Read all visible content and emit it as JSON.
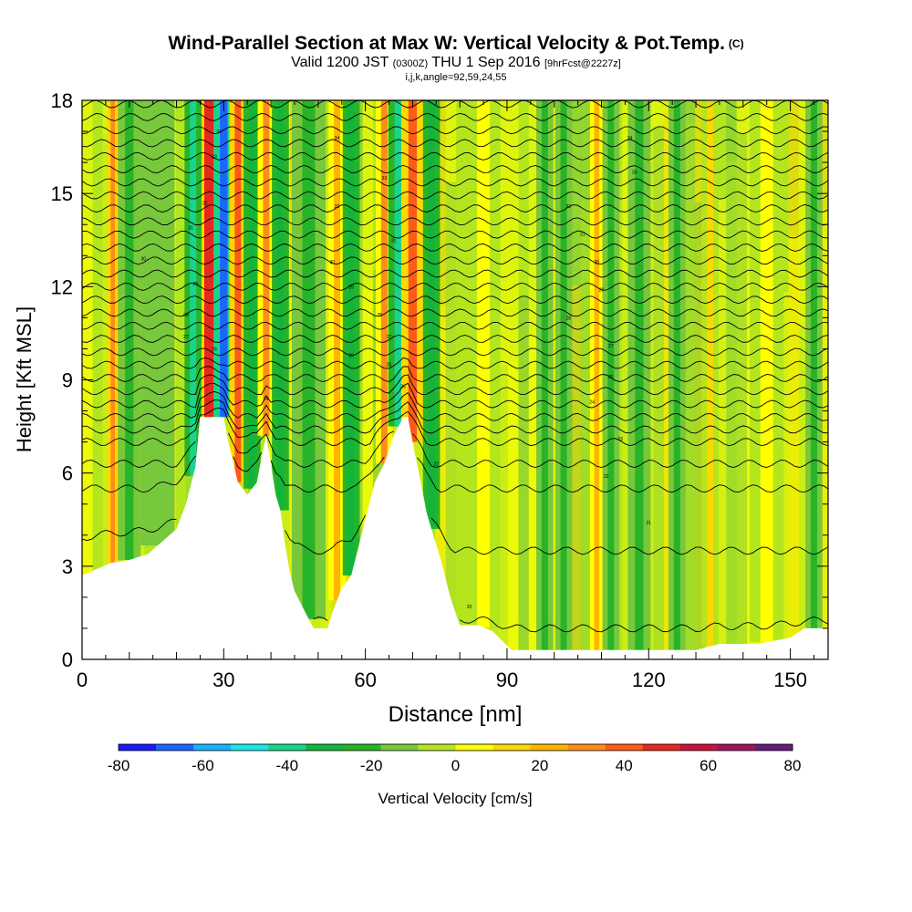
{
  "title": {
    "main": "Wind-Parallel Section at Max W: Vertical Velocity & Pot.Temp.",
    "units": "(C)",
    "valid_prefix": "Valid 1200 JST",
    "valid_z": "(0300Z)",
    "valid_date": "THU 1 Sep 2016",
    "forecast": "[9hrFcst@2227z]",
    "indices": "i,j,k,angle=92,59,24,55"
  },
  "chart_data": {
    "type": "heatmap",
    "xlabel": "Distance [nm]",
    "ylabel": "Height [Kft MSL]",
    "xlim": [
      0,
      158
    ],
    "ylim": [
      0,
      18
    ],
    "xticks": [
      0,
      30,
      60,
      90,
      120,
      150
    ],
    "yticks": [
      0,
      3,
      6,
      9,
      12,
      15,
      18
    ],
    "colorbar": {
      "label": "Vertical Velocity [cm/s]",
      "range": [
        -80,
        80
      ],
      "step": 10,
      "ticks": [
        -80,
        -60,
        -40,
        -20,
        0,
        20,
        40,
        60,
        80
      ],
      "colors": [
        "#1a1aff",
        "#1a66ff",
        "#1ab2ff",
        "#19e6e6",
        "#19d48c",
        "#12b43c",
        "#28b428",
        "#78c83c",
        "#b4e61e",
        "#ffff00",
        "#ffd700",
        "#ffb400",
        "#ff8c1a",
        "#ff5a1a",
        "#e6281e",
        "#c8143c",
        "#a0145a",
        "#641e78"
      ]
    },
    "terrain": [
      [
        0,
        2.7
      ],
      [
        3,
        2.9
      ],
      [
        6,
        3.1
      ],
      [
        10,
        3.2
      ],
      [
        14,
        3.4
      ],
      [
        17,
        3.8
      ],
      [
        20,
        4.2
      ],
      [
        22,
        5.0
      ],
      [
        24,
        6.2
      ],
      [
        25,
        7.8
      ],
      [
        30,
        7.8
      ],
      [
        31,
        7.0
      ],
      [
        33,
        5.7
      ],
      [
        35,
        5.3
      ],
      [
        37,
        5.7
      ],
      [
        38,
        6.5
      ],
      [
        39,
        7.2
      ],
      [
        40,
        6.3
      ],
      [
        41,
        5.3
      ],
      [
        42,
        4.8
      ],
      [
        43,
        3.7
      ],
      [
        44,
        2.8
      ],
      [
        45,
        2.2
      ],
      [
        47,
        1.6
      ],
      [
        49,
        1.0
      ],
      [
        52,
        1.0
      ],
      [
        53,
        1.5
      ],
      [
        55,
        2.3
      ],
      [
        57,
        2.7
      ],
      [
        58,
        3.3
      ],
      [
        60,
        4.5
      ],
      [
        62,
        5.7
      ],
      [
        64,
        6.3
      ],
      [
        66,
        7.2
      ],
      [
        68,
        7.8
      ],
      [
        69,
        7.8
      ],
      [
        70,
        7.0
      ],
      [
        72,
        5.5
      ],
      [
        73,
        4.7
      ],
      [
        74,
        4.2
      ],
      [
        76,
        3.2
      ],
      [
        78,
        2.0
      ],
      [
        80,
        1.1
      ],
      [
        84,
        1.1
      ],
      [
        87,
        0.9
      ],
      [
        89,
        0.6
      ],
      [
        91,
        0.3
      ],
      [
        120,
        0.3
      ],
      [
        130,
        0.3
      ],
      [
        135,
        0.5
      ],
      [
        143,
        0.5
      ],
      [
        150,
        0.7
      ],
      [
        153,
        1.0
      ],
      [
        158,
        1.0
      ]
    ],
    "features": [
      {
        "x": 27,
        "width": 2.5,
        "value": 65
      },
      {
        "x": 30,
        "width": 1.8,
        "value": -70
      },
      {
        "x": 33,
        "width": 1.5,
        "value": 55
      },
      {
        "x": 23.5,
        "width": 1.5,
        "value": -35
      },
      {
        "x": 36,
        "width": 1.5,
        "value": -25
      },
      {
        "x": 39,
        "width": 1.5,
        "value": 40
      },
      {
        "x": 42,
        "width": 1.5,
        "value": -30
      },
      {
        "x": 6.5,
        "width": 1.0,
        "value": 45
      },
      {
        "x": 10,
        "width": 2.0,
        "value": -15
      },
      {
        "x": 16,
        "width": 3.0,
        "value": -10
      },
      {
        "x": 48,
        "width": 3.0,
        "value": -20
      },
      {
        "x": 54,
        "width": 1.5,
        "value": 35
      },
      {
        "x": 57,
        "width": 1.5,
        "value": -25
      },
      {
        "x": 64,
        "width": 1.5,
        "value": 40
      },
      {
        "x": 67,
        "width": 1.8,
        "value": -40
      },
      {
        "x": 70,
        "width": 2.0,
        "value": 55
      },
      {
        "x": 74,
        "width": 1.5,
        "value": -25
      },
      {
        "x": 85,
        "width": 3.0,
        "value": 12
      },
      {
        "x": 98,
        "width": 1.5,
        "value": -20
      },
      {
        "x": 102,
        "width": 1.5,
        "value": -18
      },
      {
        "x": 109,
        "width": 1.2,
        "value": 35
      },
      {
        "x": 112,
        "width": 1.5,
        "value": -15
      },
      {
        "x": 118,
        "width": 2.0,
        "value": -18
      },
      {
        "x": 126,
        "width": 1.5,
        "value": -15
      },
      {
        "x": 133,
        "width": 1.5,
        "value": 22
      },
      {
        "x": 145,
        "width": 3.0,
        "value": 15
      },
      {
        "x": 155,
        "width": 1.5,
        "value": -12
      }
    ],
    "isentropes": {
      "bottom_heights": [
        0.3,
        3.5,
        5.5,
        6.3,
        7.0,
        7.4
      ],
      "upper_start": 7.8,
      "upper_spacing": 0.42,
      "upper_count": 25
    },
    "contour_labels": [
      {
        "x": 29,
        "y": 17.0,
        "text": "34"
      },
      {
        "x": 54,
        "y": 16.8,
        "text": "34"
      },
      {
        "x": 28,
        "y": 16.2,
        "text": "33"
      },
      {
        "x": 64,
        "y": 15.5,
        "text": "33"
      },
      {
        "x": 116,
        "y": 16.8,
        "text": "34"
      },
      {
        "x": 117,
        "y": 15.7,
        "text": "33"
      },
      {
        "x": 26,
        "y": 14.7,
        "text": "32"
      },
      {
        "x": 54,
        "y": 14.6,
        "text": "32"
      },
      {
        "x": 103,
        "y": 14.6,
        "text": "32"
      },
      {
        "x": 23,
        "y": 13.9,
        "text": "31"
      },
      {
        "x": 66,
        "y": 13.5,
        "text": "31"
      },
      {
        "x": 106,
        "y": 13.7,
        "text": "31"
      },
      {
        "x": 13,
        "y": 12.9,
        "text": "30"
      },
      {
        "x": 53,
        "y": 12.8,
        "text": "30"
      },
      {
        "x": 109,
        "y": 12.8,
        "text": "30"
      },
      {
        "x": 24,
        "y": 12.1,
        "text": "29"
      },
      {
        "x": 57,
        "y": 12.0,
        "text": "29"
      },
      {
        "x": 110,
        "y": 11.9,
        "text": "29"
      },
      {
        "x": 22,
        "y": 11.1,
        "text": "28"
      },
      {
        "x": 63,
        "y": 11.1,
        "text": "28"
      },
      {
        "x": 103,
        "y": 11.0,
        "text": "28"
      },
      {
        "x": 22,
        "y": 10.4,
        "text": "27"
      },
      {
        "x": 65,
        "y": 10.4,
        "text": "27"
      },
      {
        "x": 112,
        "y": 10.1,
        "text": "27"
      },
      {
        "x": 28,
        "y": 10.0,
        "text": "26"
      },
      {
        "x": 57,
        "y": 9.8,
        "text": "26"
      },
      {
        "x": 65,
        "y": 9.5,
        "text": "25"
      },
      {
        "x": 112,
        "y": 9.1,
        "text": "25"
      },
      {
        "x": 68,
        "y": 8.8,
        "text": "24"
      },
      {
        "x": 39,
        "y": 8.4,
        "text": "24"
      },
      {
        "x": 108,
        "y": 8.3,
        "text": "24"
      },
      {
        "x": 114,
        "y": 7.1,
        "text": "23"
      },
      {
        "x": 75,
        "y": 6.3,
        "text": "22"
      },
      {
        "x": 111,
        "y": 5.9,
        "text": "22"
      },
      {
        "x": 120,
        "y": 4.4,
        "text": "21"
      },
      {
        "x": 82,
        "y": 1.7,
        "text": "20"
      }
    ]
  }
}
